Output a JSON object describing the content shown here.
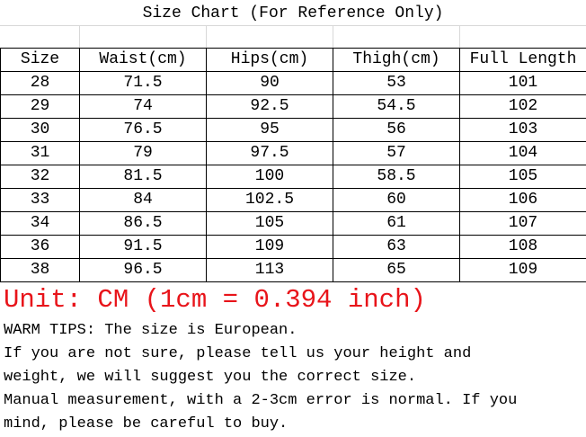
{
  "title": "Size Chart  (For Reference Only)",
  "table": {
    "headers": [
      "Size",
      "Waist(cm)",
      "Hips(cm)",
      "Thigh(cm)",
      "Full Length"
    ],
    "rows": [
      [
        "28",
        "71.5",
        "90",
        "53",
        "101"
      ],
      [
        "29",
        "74",
        "92.5",
        "54.5",
        "102"
      ],
      [
        "30",
        "76.5",
        "95",
        "56",
        "103"
      ],
      [
        "31",
        "79",
        "97.5",
        "57",
        "104"
      ],
      [
        "32",
        "81.5",
        "100",
        "58.5",
        "105"
      ],
      [
        "33",
        "84",
        "102.5",
        "60",
        "106"
      ],
      [
        "34",
        "86.5",
        "105",
        "61",
        "107"
      ],
      [
        "36",
        "91.5",
        "109",
        "63",
        "108"
      ],
      [
        "38",
        "96.5",
        "113",
        "65",
        "109"
      ]
    ]
  },
  "unit_note": "Unit: CM (1cm = 0.394 inch)",
  "unit_color": "#e8141a",
  "tips": [
    "WARM TIPS: The size is European.",
    "If you are not sure, please tell us your height and",
    "weight, we will suggest you the correct size.",
    "Manual measurement, with a 2-3cm error is normal. If you",
    "mind, please be careful to buy."
  ]
}
